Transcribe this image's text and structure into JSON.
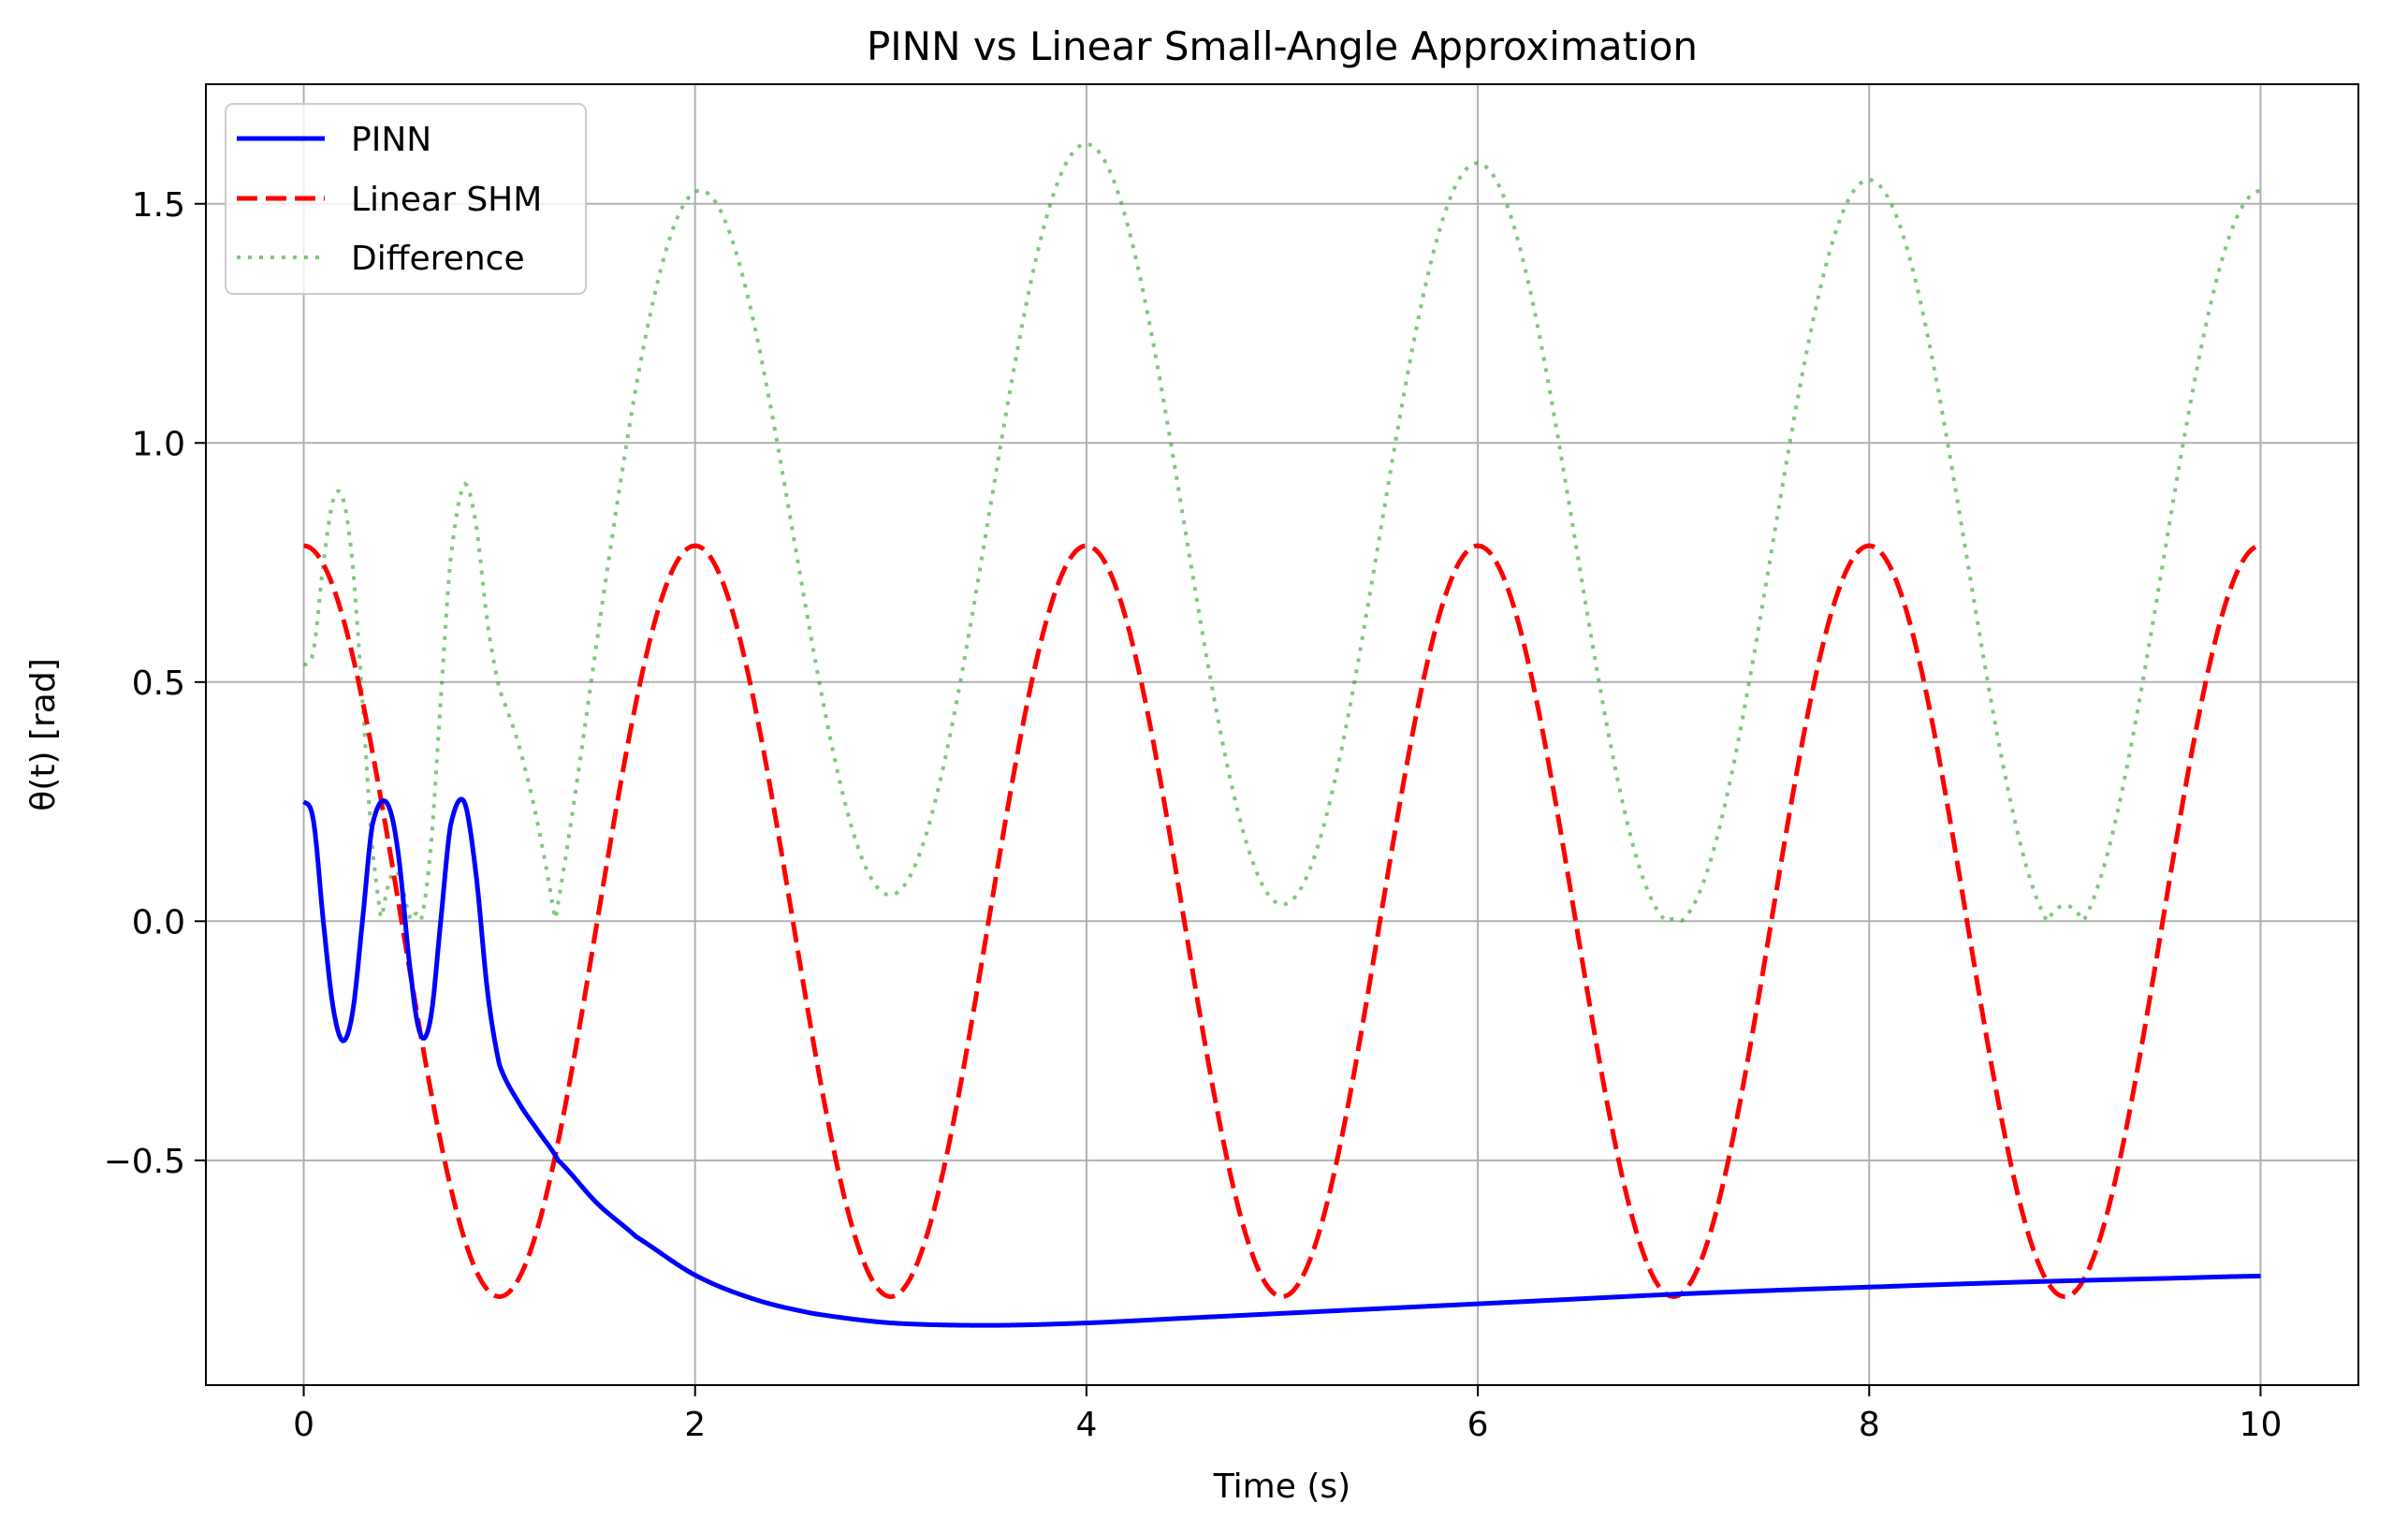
{
  "chart_data": {
    "type": "line",
    "title": "PINN vs Linear Small-Angle Approximation",
    "xlabel": "Time (s)",
    "ylabel": "θ(t) [rad]",
    "xlim": [
      -0.5,
      10.5
    ],
    "ylim": [
      -0.97,
      1.75
    ],
    "xticks": [
      0,
      2,
      4,
      6,
      8,
      10
    ],
    "xtick_labels": [
      "0",
      "2",
      "4",
      "6",
      "8",
      "10"
    ],
    "yticks": [
      -0.5,
      0.0,
      0.5,
      1.0,
      1.5
    ],
    "ytick_labels": [
      "−0.5",
      "0.0",
      "0.5",
      "1.0",
      "1.5"
    ],
    "grid": true,
    "legend_position": "top-left",
    "series": [
      {
        "name": "PINN",
        "color": "#0000ff",
        "style": "solid",
        "x": [
          0,
          0.05,
          0.1,
          0.15,
          0.2,
          0.25,
          0.3,
          0.35,
          0.42,
          0.48,
          0.55,
          0.6,
          0.65,
          0.7,
          0.75,
          0.82,
          0.88,
          0.94,
          1.0,
          1.1,
          1.2,
          1.3,
          1.5,
          1.7,
          2.0,
          2.3,
          2.6,
          3.0,
          3.5,
          4.0,
          4.5,
          5.0,
          5.5,
          6.0,
          6.5,
          7.0,
          7.5,
          8.0,
          8.5,
          9.0,
          9.5,
          10.0
        ],
        "y": [
          0.25,
          0.21,
          0.0,
          -0.18,
          -0.25,
          -0.19,
          0.0,
          0.2,
          0.25,
          0.15,
          -0.12,
          -0.24,
          -0.2,
          0.0,
          0.2,
          0.25,
          0.1,
          -0.15,
          -0.3,
          -0.38,
          -0.44,
          -0.5,
          -0.59,
          -0.66,
          -0.74,
          -0.79,
          -0.82,
          -0.84,
          -0.845,
          -0.84,
          -0.83,
          -0.82,
          -0.81,
          -0.8,
          -0.79,
          -0.78,
          -0.772,
          -0.765,
          -0.758,
          -0.752,
          -0.747,
          -0.742
        ]
      },
      {
        "name": "Linear SHM",
        "color": "#ff0000",
        "style": "dashed",
        "function": "0.785*cos(pi*t)",
        "amplitude": 0.785,
        "period": 2.0,
        "x_range": [
          0,
          10
        ]
      },
      {
        "name": "Difference",
        "color": "#2ca02c",
        "style": "dotted",
        "opacity": 0.6,
        "function": "abs(PINN - Linear SHM)",
        "x_range": [
          0,
          10
        ]
      }
    ]
  }
}
